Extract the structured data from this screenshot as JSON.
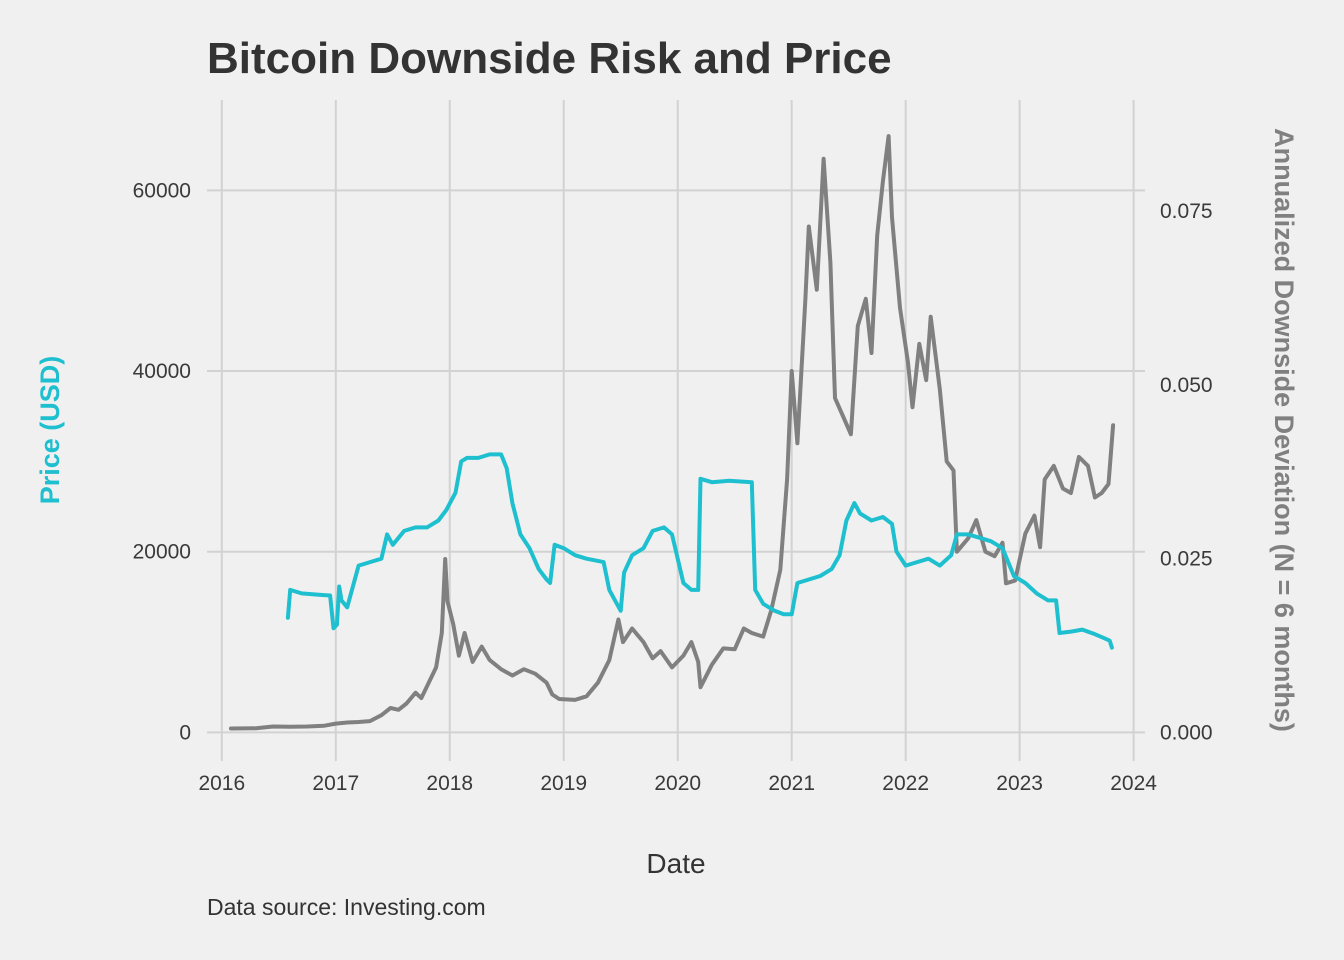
{
  "chart_data": {
    "type": "line",
    "title": "Bitcoin Downside Risk and Price",
    "xlabel": "Date",
    "ylabel_left": "Price (USD)",
    "ylabel_right": "Annualized Downside Deviation (N = 6 months)",
    "caption": "Data source: Investing.com",
    "x_ticks": [
      "2016",
      "2017",
      "2018",
      "2019",
      "2020",
      "2021",
      "2022",
      "2023",
      "2024"
    ],
    "y_left_ticks": [
      "0",
      "20000",
      "40000",
      "60000"
    ],
    "y_right_ticks": [
      "0.000",
      "0.025",
      "0.050",
      "0.075"
    ],
    "xlim": [
      2015.87,
      2024.1
    ],
    "ylim_left": [
      -2500,
      70000
    ],
    "ylim_right": [
      -0.00325,
      0.091
    ],
    "grid": true,
    "colors": {
      "price": "#808080",
      "downside": "#1ebfcf"
    },
    "series": [
      {
        "role": "price",
        "axis": "left",
        "points": [
          [
            2016.08,
            430
          ],
          [
            2016.3,
            450
          ],
          [
            2016.45,
            650
          ],
          [
            2016.6,
            620
          ],
          [
            2016.75,
            650
          ],
          [
            2016.9,
            740
          ],
          [
            2017.0,
            980
          ],
          [
            2017.1,
            1100
          ],
          [
            2017.2,
            1150
          ],
          [
            2017.3,
            1250
          ],
          [
            2017.4,
            1900
          ],
          [
            2017.48,
            2700
          ],
          [
            2017.55,
            2500
          ],
          [
            2017.62,
            3200
          ],
          [
            2017.7,
            4400
          ],
          [
            2017.75,
            3800
          ],
          [
            2017.82,
            5600
          ],
          [
            2017.88,
            7200
          ],
          [
            2017.93,
            11000
          ],
          [
            2017.96,
            19200
          ],
          [
            2017.98,
            14500
          ],
          [
            2018.03,
            12000
          ],
          [
            2018.08,
            8500
          ],
          [
            2018.13,
            11000
          ],
          [
            2018.2,
            7800
          ],
          [
            2018.28,
            9500
          ],
          [
            2018.35,
            8000
          ],
          [
            2018.45,
            7000
          ],
          [
            2018.55,
            6300
          ],
          [
            2018.65,
            7000
          ],
          [
            2018.75,
            6500
          ],
          [
            2018.85,
            5500
          ],
          [
            2018.9,
            4200
          ],
          [
            2018.96,
            3700
          ],
          [
            2019.1,
            3600
          ],
          [
            2019.2,
            4000
          ],
          [
            2019.3,
            5500
          ],
          [
            2019.4,
            8000
          ],
          [
            2019.48,
            12500
          ],
          [
            2019.52,
            10000
          ],
          [
            2019.6,
            11500
          ],
          [
            2019.7,
            10000
          ],
          [
            2019.78,
            8200
          ],
          [
            2019.85,
            9000
          ],
          [
            2019.95,
            7200
          ],
          [
            2020.05,
            8500
          ],
          [
            2020.12,
            10000
          ],
          [
            2020.18,
            7800
          ],
          [
            2020.2,
            5000
          ],
          [
            2020.3,
            7500
          ],
          [
            2020.4,
            9300
          ],
          [
            2020.5,
            9200
          ],
          [
            2020.58,
            11500
          ],
          [
            2020.65,
            11000
          ],
          [
            2020.75,
            10600
          ],
          [
            2020.82,
            13500
          ],
          [
            2020.9,
            18000
          ],
          [
            2020.96,
            28000
          ],
          [
            2021.0,
            40000
          ],
          [
            2021.05,
            32000
          ],
          [
            2021.12,
            48000
          ],
          [
            2021.15,
            56000
          ],
          [
            2021.22,
            49000
          ],
          [
            2021.28,
            63500
          ],
          [
            2021.34,
            52000
          ],
          [
            2021.38,
            37000
          ],
          [
            2021.45,
            35000
          ],
          [
            2021.52,
            33000
          ],
          [
            2021.58,
            45000
          ],
          [
            2021.65,
            48000
          ],
          [
            2021.7,
            42000
          ],
          [
            2021.75,
            55000
          ],
          [
            2021.8,
            61000
          ],
          [
            2021.85,
            66000
          ],
          [
            2021.88,
            57000
          ],
          [
            2021.95,
            47000
          ],
          [
            2022.02,
            41000
          ],
          [
            2022.06,
            36000
          ],
          [
            2022.12,
            43000
          ],
          [
            2022.18,
            39000
          ],
          [
            2022.22,
            46000
          ],
          [
            2022.3,
            38000
          ],
          [
            2022.36,
            30000
          ],
          [
            2022.42,
            29000
          ],
          [
            2022.45,
            20000
          ],
          [
            2022.55,
            21500
          ],
          [
            2022.62,
            23500
          ],
          [
            2022.7,
            20000
          ],
          [
            2022.78,
            19500
          ],
          [
            2022.85,
            21000
          ],
          [
            2022.88,
            16500
          ],
          [
            2022.96,
            16800
          ],
          [
            2023.05,
            22000
          ],
          [
            2023.13,
            24000
          ],
          [
            2023.18,
            20500
          ],
          [
            2023.22,
            28000
          ],
          [
            2023.3,
            29500
          ],
          [
            2023.38,
            27000
          ],
          [
            2023.45,
            26500
          ],
          [
            2023.52,
            30500
          ],
          [
            2023.6,
            29500
          ],
          [
            2023.66,
            26000
          ],
          [
            2023.72,
            26500
          ],
          [
            2023.78,
            27500
          ],
          [
            2023.82,
            34000
          ]
        ]
      },
      {
        "role": "downside",
        "axis": "right",
        "points": [
          [
            2016.58,
            0.0165
          ],
          [
            2016.6,
            0.0205
          ],
          [
            2016.7,
            0.02
          ],
          [
            2016.85,
            0.0198
          ],
          [
            2016.95,
            0.0197
          ],
          [
            2016.98,
            0.015
          ],
          [
            2017.01,
            0.0155
          ],
          [
            2017.03,
            0.021
          ],
          [
            2017.05,
            0.019
          ],
          [
            2017.1,
            0.018
          ],
          [
            2017.2,
            0.024
          ],
          [
            2017.3,
            0.0245
          ],
          [
            2017.4,
            0.025
          ],
          [
            2017.45,
            0.0285
          ],
          [
            2017.5,
            0.027
          ],
          [
            2017.6,
            0.029
          ],
          [
            2017.7,
            0.0295
          ],
          [
            2017.8,
            0.0295
          ],
          [
            2017.9,
            0.0305
          ],
          [
            2017.97,
            0.032
          ],
          [
            2018.05,
            0.0345
          ],
          [
            2018.1,
            0.039
          ],
          [
            2018.15,
            0.0395
          ],
          [
            2018.25,
            0.0395
          ],
          [
            2018.35,
            0.04
          ],
          [
            2018.45,
            0.04
          ],
          [
            2018.5,
            0.038
          ],
          [
            2018.55,
            0.033
          ],
          [
            2018.62,
            0.0285
          ],
          [
            2018.7,
            0.0265
          ],
          [
            2018.78,
            0.0235
          ],
          [
            2018.85,
            0.022
          ],
          [
            2018.88,
            0.0215
          ],
          [
            2018.92,
            0.027
          ],
          [
            2019.0,
            0.0265
          ],
          [
            2019.1,
            0.0255
          ],
          [
            2019.2,
            0.025
          ],
          [
            2019.35,
            0.0245
          ],
          [
            2019.4,
            0.0205
          ],
          [
            2019.5,
            0.0175
          ],
          [
            2019.53,
            0.023
          ],
          [
            2019.6,
            0.0255
          ],
          [
            2019.7,
            0.0265
          ],
          [
            2019.78,
            0.029
          ],
          [
            2019.88,
            0.0295
          ],
          [
            2019.95,
            0.0285
          ],
          [
            2020.0,
            0.025
          ],
          [
            2020.05,
            0.0215
          ],
          [
            2020.12,
            0.0205
          ],
          [
            2020.18,
            0.0205
          ],
          [
            2020.2,
            0.0365
          ],
          [
            2020.3,
            0.036
          ],
          [
            2020.45,
            0.0362
          ],
          [
            2020.65,
            0.036
          ],
          [
            2020.68,
            0.0205
          ],
          [
            2020.75,
            0.0185
          ],
          [
            2020.85,
            0.0175
          ],
          [
            2020.93,
            0.017
          ],
          [
            2021.0,
            0.017
          ],
          [
            2021.05,
            0.0215
          ],
          [
            2021.15,
            0.022
          ],
          [
            2021.25,
            0.0225
          ],
          [
            2021.35,
            0.0235
          ],
          [
            2021.42,
            0.0255
          ],
          [
            2021.48,
            0.0305
          ],
          [
            2021.55,
            0.033
          ],
          [
            2021.6,
            0.0315
          ],
          [
            2021.7,
            0.0305
          ],
          [
            2021.8,
            0.031
          ],
          [
            2021.88,
            0.03
          ],
          [
            2021.92,
            0.026
          ],
          [
            2022.0,
            0.024
          ],
          [
            2022.1,
            0.0245
          ],
          [
            2022.2,
            0.025
          ],
          [
            2022.3,
            0.024
          ],
          [
            2022.4,
            0.0255
          ],
          [
            2022.45,
            0.0285
          ],
          [
            2022.55,
            0.0285
          ],
          [
            2022.65,
            0.028
          ],
          [
            2022.75,
            0.0275
          ],
          [
            2022.85,
            0.0265
          ],
          [
            2022.95,
            0.0225
          ],
          [
            2023.05,
            0.0215
          ],
          [
            2023.15,
            0.02
          ],
          [
            2023.25,
            0.019
          ],
          [
            2023.32,
            0.019
          ],
          [
            2023.35,
            0.0143
          ],
          [
            2023.45,
            0.0145
          ],
          [
            2023.55,
            0.0148
          ],
          [
            2023.65,
            0.0142
          ],
          [
            2023.75,
            0.0135
          ],
          [
            2023.79,
            0.0132
          ],
          [
            2023.81,
            0.0122
          ]
        ]
      }
    ]
  }
}
